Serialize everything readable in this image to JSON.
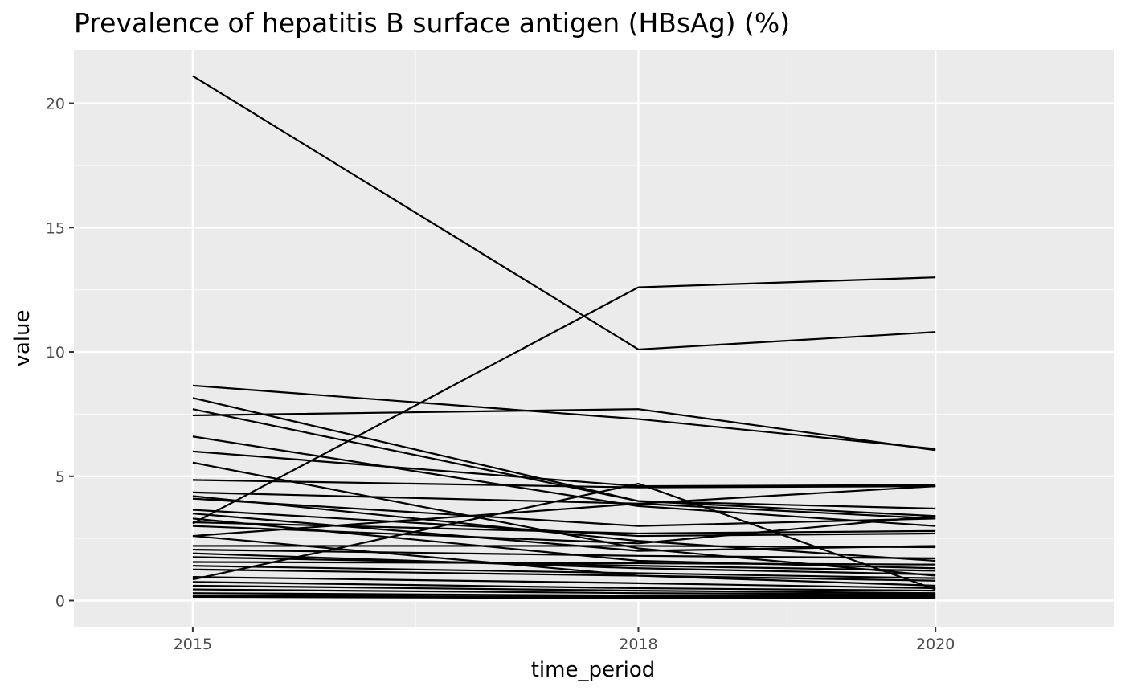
{
  "chart_data": {
    "type": "line",
    "title": "Prevalence of hepatitis B surface antigen (HBsAg) (%)",
    "xlabel": "time_period",
    "ylabel": "value",
    "x": [
      "2015",
      "2018",
      "2020"
    ],
    "x_numeric": [
      2015,
      2018,
      2020
    ],
    "xlim": [
      2014.2,
      2021.2
    ],
    "ylim": [
      -1.05,
      22.15
    ],
    "y_ticks": [
      0,
      5,
      10,
      15,
      20
    ],
    "y_tick_labels": [
      "0",
      "5",
      "10",
      "15",
      "20"
    ],
    "x_ticks": [
      2015,
      2018,
      2020
    ],
    "x_tick_labels": [
      "2015",
      "2018",
      "2020"
    ],
    "grid": true,
    "legend": "none",
    "colors": {
      "panel_background": "#ebebeb",
      "grid_major": "#ffffff",
      "grid_minor": "#f7f7f7",
      "line": "#000000",
      "tick": "#333333",
      "tick_label": "#4d4d4d"
    },
    "series": [
      {
        "values": [
          21.1,
          10.1,
          10.8
        ]
      },
      {
        "values": [
          3.1,
          12.6,
          13.0
        ]
      },
      {
        "values": [
          8.65,
          7.3,
          6.1
        ]
      },
      {
        "values": [
          7.45,
          7.7,
          6.05
        ]
      },
      {
        "values": [
          8.15,
          4.0,
          3.7
        ]
      },
      {
        "values": [
          7.7,
          4.0,
          3.4
        ]
      },
      {
        "values": [
          6.6,
          3.8,
          3.0
        ]
      },
      {
        "values": [
          6.0,
          4.6,
          4.65
        ]
      },
      {
        "values": [
          5.55,
          2.1,
          1.0
        ]
      },
      {
        "values": [
          4.85,
          4.55,
          4.6
        ]
      },
      {
        "values": [
          4.35,
          3.9,
          4.6
        ]
      },
      {
        "values": [
          4.2,
          2.4,
          1.6
        ]
      },
      {
        "values": [
          4.1,
          3.0,
          3.3
        ]
      },
      {
        "values": [
          3.65,
          2.6,
          2.7
        ]
      },
      {
        "values": [
          3.5,
          2.0,
          2.2
        ]
      },
      {
        "values": [
          3.3,
          1.6,
          1.3
        ]
      },
      {
        "values": [
          3.15,
          2.7,
          2.8
        ]
      },
      {
        "values": [
          3.0,
          2.3,
          3.4
        ]
      },
      {
        "values": [
          2.6,
          3.9,
          3.3
        ]
      },
      {
        "values": [
          2.6,
          1.0,
          0.6
        ]
      },
      {
        "values": [
          2.2,
          2.2,
          2.15
        ]
      },
      {
        "values": [
          2.05,
          1.8,
          1.7
        ]
      },
      {
        "values": [
          1.9,
          1.3,
          1.05
        ]
      },
      {
        "values": [
          1.75,
          1.4,
          1.2
        ]
      },
      {
        "values": [
          1.55,
          1.5,
          1.45
        ]
      },
      {
        "values": [
          1.4,
          1.1,
          0.9
        ]
      },
      {
        "values": [
          1.25,
          1.0,
          0.8
        ]
      },
      {
        "values": [
          0.95,
          0.7,
          0.5
        ]
      },
      {
        "values": [
          0.85,
          4.7,
          0.45
        ]
      },
      {
        "values": [
          0.75,
          0.5,
          0.4
        ]
      },
      {
        "values": [
          0.6,
          0.4,
          0.3
        ]
      },
      {
        "values": [
          0.45,
          0.3,
          0.25
        ]
      },
      {
        "values": [
          0.3,
          0.2,
          0.2
        ]
      },
      {
        "values": [
          0.2,
          0.15,
          0.15
        ]
      },
      {
        "values": [
          0.15,
          0.1,
          0.1
        ]
      }
    ]
  }
}
